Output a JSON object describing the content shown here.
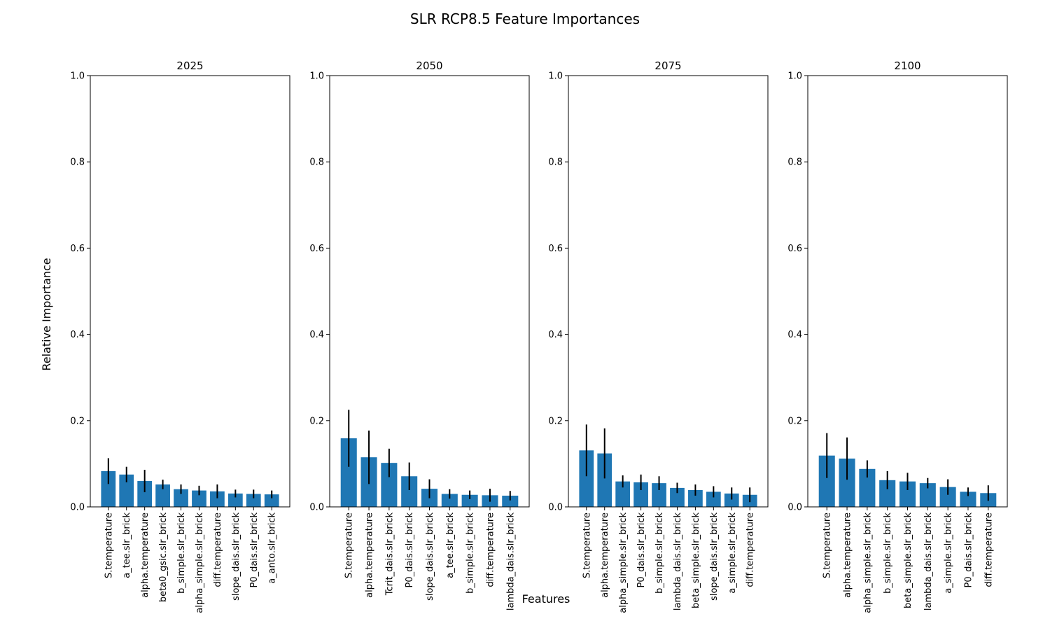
{
  "figure": {
    "title": "SLR RCP8.5 Feature Importances",
    "xlabel": "Features",
    "ylabel": "Relative Importance"
  },
  "chart_data": [
    {
      "type": "bar",
      "title": "2025",
      "ylim": [
        0,
        1.0
      ],
      "yticks": [
        "0.0",
        "0.2",
        "0.4",
        "0.6",
        "0.8",
        "1.0"
      ],
      "categories": [
        "S.temperature",
        "a_tee.slr_brick",
        "alpha.temperature",
        "beta0_gsic.slr_brick",
        "b_simple.slr_brick",
        "alpha_simple.slr_brick",
        "diff.temperature",
        "slope_dais.slr_brick",
        "P0_dais.slr_brick",
        "a_anto.slr_brick"
      ],
      "values": [
        0.083,
        0.075,
        0.06,
        0.052,
        0.041,
        0.038,
        0.036,
        0.031,
        0.03,
        0.029
      ],
      "errors": [
        0.03,
        0.018,
        0.026,
        0.011,
        0.011,
        0.011,
        0.016,
        0.009,
        0.01,
        0.009
      ],
      "bar_color": "#1f77b4",
      "error_color": "#000000",
      "grid": false
    },
    {
      "type": "bar",
      "title": "2050",
      "ylim": [
        0,
        1.0
      ],
      "yticks": [
        "0.0",
        "0.2",
        "0.4",
        "0.6",
        "0.8",
        "1.0"
      ],
      "categories": [
        "S.temperature",
        "alpha.temperature",
        "Tcrit_dais.slr_brick",
        "P0_dais.slr_brick",
        "slope_dais.slr_brick",
        "a_tee.slr_brick",
        "b_simple.slr_brick",
        "diff.temperature",
        "lambda_dais.slr_brick"
      ],
      "values": [
        0.159,
        0.115,
        0.102,
        0.071,
        0.042,
        0.03,
        0.028,
        0.027,
        0.026
      ],
      "errors": [
        0.066,
        0.062,
        0.033,
        0.032,
        0.022,
        0.011,
        0.01,
        0.015,
        0.011
      ],
      "bar_color": "#1f77b4",
      "error_color": "#000000",
      "grid": false
    },
    {
      "type": "bar",
      "title": "2075",
      "ylim": [
        0,
        1.0
      ],
      "yticks": [
        "0.0",
        "0.2",
        "0.4",
        "0.6",
        "0.8",
        "1.0"
      ],
      "categories": [
        "S.temperature",
        "alpha.temperature",
        "alpha_simple.slr_brick",
        "P0_dais.slr_brick",
        "b_simple.slr_brick",
        "lambda_dais.slr_brick",
        "beta_simple.slr_brick",
        "slope_dais.slr_brick",
        "a_simple.slr_brick",
        "diff.temperature"
      ],
      "values": [
        0.131,
        0.124,
        0.059,
        0.057,
        0.055,
        0.044,
        0.039,
        0.035,
        0.031,
        0.028
      ],
      "errors": [
        0.06,
        0.058,
        0.014,
        0.018,
        0.016,
        0.012,
        0.013,
        0.013,
        0.014,
        0.017
      ],
      "bar_color": "#1f77b4",
      "error_color": "#000000",
      "grid": false
    },
    {
      "type": "bar",
      "title": "2100",
      "ylim": [
        0,
        1.0
      ],
      "yticks": [
        "0.0",
        "0.2",
        "0.4",
        "0.6",
        "0.8",
        "1.0"
      ],
      "categories": [
        "S.temperature",
        "alpha.temperature",
        "alpha_simple.slr_brick",
        "b_simple.slr_brick",
        "beta_simple.slr_brick",
        "lambda_dais.slr_brick",
        "a_simple.slr_brick",
        "P0_dais.slr_brick",
        "diff.temperature"
      ],
      "values": [
        0.119,
        0.112,
        0.088,
        0.062,
        0.059,
        0.055,
        0.046,
        0.035,
        0.032
      ],
      "errors": [
        0.052,
        0.049,
        0.02,
        0.021,
        0.02,
        0.012,
        0.018,
        0.01,
        0.018
      ],
      "bar_color": "#1f77b4",
      "error_color": "#000000",
      "grid": false
    }
  ]
}
